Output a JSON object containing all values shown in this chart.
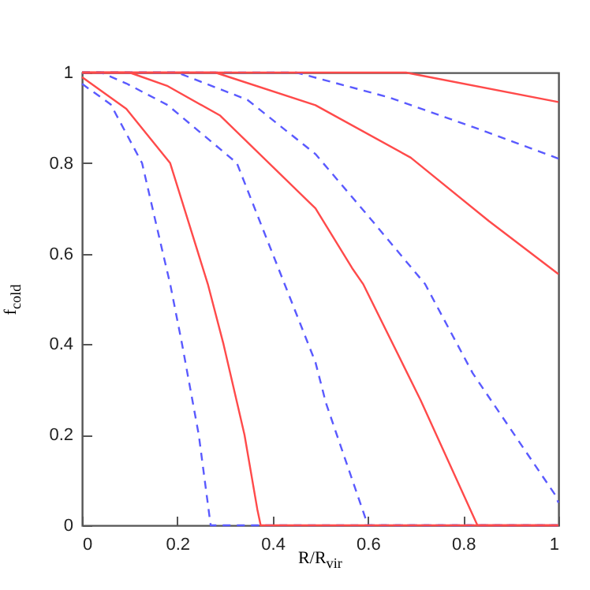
{
  "chart_data": {
    "type": "line",
    "xlabel": "R/R$_{vir}$",
    "ylabel": "f$_{cold}$",
    "xlim": [
      0,
      1
    ],
    "ylim": [
      0,
      1
    ],
    "xticks": [
      0,
      0.2,
      0.4,
      0.6,
      0.8,
      1
    ],
    "yticks": [
      0,
      0.2,
      0.4,
      0.6,
      0.8,
      1
    ],
    "grid": false,
    "series": [
      {
        "color": "#5a5aff",
        "line_style": "dashed",
        "x": [
          0,
          0.06,
          0.126,
          0.17,
          0.185,
          0.21,
          0.245,
          0.27,
          1
        ],
        "values": [
          0.975,
          0.93,
          0.8,
          0.6,
          0.533,
          0.4,
          0.2,
          0,
          0
        ]
      },
      {
        "color": "#ff4a4a",
        "line_style": "solid",
        "x": [
          0,
          0.093,
          0.185,
          0.264,
          0.297,
          0.341,
          0.368,
          0.375,
          1
        ],
        "values": [
          0.99,
          0.92,
          0.8,
          0.533,
          0.4,
          0.2,
          0.035,
          0,
          0
        ]
      },
      {
        "color": "#5a5aff",
        "line_style": "dashed",
        "x": [
          0,
          0.04,
          0.093,
          0.18,
          0.325,
          0.4,
          0.49,
          0.512,
          0.6,
          1
        ],
        "values": [
          1,
          1,
          0.976,
          0.928,
          0.8,
          0.6,
          0.36,
          0.27,
          0,
          0
        ]
      },
      {
        "color": "#ff4a4a",
        "line_style": "solid",
        "x": [
          0,
          0.1,
          0.18,
          0.29,
          0.49,
          0.567,
          0.59,
          0.71,
          0.83,
          1
        ],
        "values": [
          1,
          1,
          0.97,
          0.905,
          0.7,
          0.568,
          0.533,
          0.278,
          0,
          0
        ]
      },
      {
        "color": "#5a5aff",
        "line_style": "dashed",
        "x": [
          0,
          0.2,
          0.347,
          0.49,
          0.6,
          0.72,
          0.82,
          0.992,
          1
        ],
        "values": [
          1,
          1,
          0.94,
          0.82,
          0.684,
          0.533,
          0.336,
          0.069,
          0.05
        ]
      },
      {
        "color": "#ff4a4a",
        "line_style": "solid",
        "x": [
          0,
          0.28,
          0.49,
          0.69,
          0.854,
          1
        ],
        "values": [
          1,
          1,
          0.928,
          0.812,
          0.672,
          0.555
        ]
      },
      {
        "color": "#5a5aff",
        "line_style": "dashed",
        "x": [
          0,
          0.45,
          0.645,
          0.82,
          1
        ],
        "values": [
          1,
          1,
          0.945,
          0.88,
          0.81
        ]
      },
      {
        "color": "#ff4a4a",
        "line_style": "solid",
        "x": [
          0,
          0.68,
          1
        ],
        "values": [
          1,
          1,
          0.935
        ]
      }
    ]
  }
}
